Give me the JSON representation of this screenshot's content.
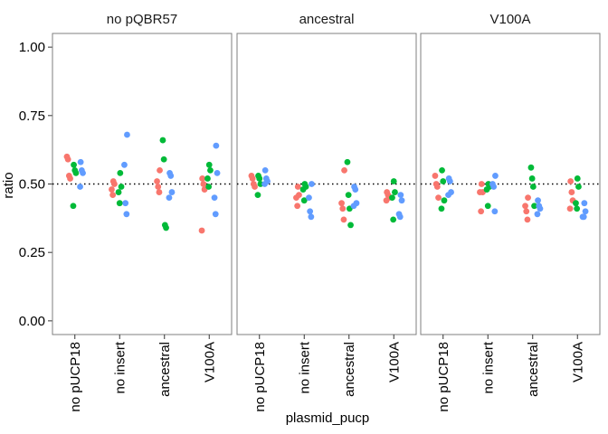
{
  "chart_data": {
    "type": "scatter",
    "xlabel": "plasmid_pucp",
    "ylabel": "ratio",
    "ylim": [
      -0.05,
      1.05
    ],
    "yticks": [
      "0.00",
      "0.25",
      "0.50",
      "0.75",
      "1.00"
    ],
    "categories": [
      "no pUCP18",
      "no insert",
      "ancestral",
      "V100A"
    ],
    "reference_line": 0.5,
    "grid": false,
    "legend": "none",
    "colors": [
      "#F8766D",
      "#00BA38",
      "#619CFF"
    ],
    "facets": [
      {
        "label": "no pQBR57",
        "points": [
          {
            "cat": 0,
            "s": 0,
            "y": 0.6
          },
          {
            "cat": 0,
            "s": 0,
            "y": 0.59
          },
          {
            "cat": 0,
            "s": 0,
            "y": 0.53
          },
          {
            "cat": 0,
            "s": 0,
            "y": 0.52
          },
          {
            "cat": 0,
            "s": 1,
            "y": 0.57
          },
          {
            "cat": 0,
            "s": 1,
            "y": 0.55
          },
          {
            "cat": 0,
            "s": 1,
            "y": 0.54
          },
          {
            "cat": 0,
            "s": 1,
            "y": 0.42
          },
          {
            "cat": 0,
            "s": 2,
            "y": 0.58
          },
          {
            "cat": 0,
            "s": 2,
            "y": 0.55
          },
          {
            "cat": 0,
            "s": 2,
            "y": 0.54
          },
          {
            "cat": 0,
            "s": 2,
            "y": 0.49
          },
          {
            "cat": 1,
            "s": 0,
            "y": 0.51
          },
          {
            "cat": 1,
            "s": 0,
            "y": 0.5
          },
          {
            "cat": 1,
            "s": 0,
            "y": 0.48
          },
          {
            "cat": 1,
            "s": 0,
            "y": 0.46
          },
          {
            "cat": 1,
            "s": 1,
            "y": 0.54
          },
          {
            "cat": 1,
            "s": 1,
            "y": 0.49
          },
          {
            "cat": 1,
            "s": 1,
            "y": 0.47
          },
          {
            "cat": 1,
            "s": 1,
            "y": 0.43
          },
          {
            "cat": 1,
            "s": 2,
            "y": 0.68
          },
          {
            "cat": 1,
            "s": 2,
            "y": 0.57
          },
          {
            "cat": 1,
            "s": 2,
            "y": 0.43
          },
          {
            "cat": 1,
            "s": 2,
            "y": 0.39
          },
          {
            "cat": 2,
            "s": 0,
            "y": 0.55
          },
          {
            "cat": 2,
            "s": 0,
            "y": 0.51
          },
          {
            "cat": 2,
            "s": 0,
            "y": 0.49
          },
          {
            "cat": 2,
            "s": 0,
            "y": 0.47
          },
          {
            "cat": 2,
            "s": 1,
            "y": 0.66
          },
          {
            "cat": 2,
            "s": 1,
            "y": 0.59
          },
          {
            "cat": 2,
            "s": 1,
            "y": 0.35
          },
          {
            "cat": 2,
            "s": 1,
            "y": 0.34
          },
          {
            "cat": 2,
            "s": 2,
            "y": 0.54
          },
          {
            "cat": 2,
            "s": 2,
            "y": 0.53
          },
          {
            "cat": 2,
            "s": 2,
            "y": 0.47
          },
          {
            "cat": 2,
            "s": 2,
            "y": 0.45
          },
          {
            "cat": 3,
            "s": 0,
            "y": 0.52
          },
          {
            "cat": 3,
            "s": 0,
            "y": 0.5
          },
          {
            "cat": 3,
            "s": 0,
            "y": 0.48
          },
          {
            "cat": 3,
            "s": 0,
            "y": 0.33
          },
          {
            "cat": 3,
            "s": 1,
            "y": 0.57
          },
          {
            "cat": 3,
            "s": 1,
            "y": 0.55
          },
          {
            "cat": 3,
            "s": 1,
            "y": 0.52
          },
          {
            "cat": 3,
            "s": 1,
            "y": 0.49
          },
          {
            "cat": 3,
            "s": 2,
            "y": 0.64
          },
          {
            "cat": 3,
            "s": 2,
            "y": 0.54
          },
          {
            "cat": 3,
            "s": 2,
            "y": 0.45
          },
          {
            "cat": 3,
            "s": 2,
            "y": 0.39
          }
        ]
      },
      {
        "label": "ancestral",
        "points": [
          {
            "cat": 0,
            "s": 0,
            "y": 0.53
          },
          {
            "cat": 0,
            "s": 0,
            "y": 0.52
          },
          {
            "cat": 0,
            "s": 0,
            "y": 0.5
          },
          {
            "cat": 0,
            "s": 0,
            "y": 0.49
          },
          {
            "cat": 0,
            "s": 1,
            "y": 0.53
          },
          {
            "cat": 0,
            "s": 1,
            "y": 0.52
          },
          {
            "cat": 0,
            "s": 1,
            "y": 0.5
          },
          {
            "cat": 0,
            "s": 1,
            "y": 0.46
          },
          {
            "cat": 0,
            "s": 2,
            "y": 0.55
          },
          {
            "cat": 0,
            "s": 2,
            "y": 0.52
          },
          {
            "cat": 0,
            "s": 2,
            "y": 0.51
          },
          {
            "cat": 0,
            "s": 2,
            "y": 0.5
          },
          {
            "cat": 1,
            "s": 0,
            "y": 0.49
          },
          {
            "cat": 1,
            "s": 0,
            "y": 0.46
          },
          {
            "cat": 1,
            "s": 0,
            "y": 0.45
          },
          {
            "cat": 1,
            "s": 0,
            "y": 0.42
          },
          {
            "cat": 1,
            "s": 1,
            "y": 0.5
          },
          {
            "cat": 1,
            "s": 1,
            "y": 0.49
          },
          {
            "cat": 1,
            "s": 1,
            "y": 0.48
          },
          {
            "cat": 1,
            "s": 1,
            "y": 0.44
          },
          {
            "cat": 1,
            "s": 2,
            "y": 0.5
          },
          {
            "cat": 1,
            "s": 2,
            "y": 0.45
          },
          {
            "cat": 1,
            "s": 2,
            "y": 0.4
          },
          {
            "cat": 1,
            "s": 2,
            "y": 0.38
          },
          {
            "cat": 2,
            "s": 0,
            "y": 0.55
          },
          {
            "cat": 2,
            "s": 0,
            "y": 0.43
          },
          {
            "cat": 2,
            "s": 0,
            "y": 0.41
          },
          {
            "cat": 2,
            "s": 0,
            "y": 0.37
          },
          {
            "cat": 2,
            "s": 1,
            "y": 0.58
          },
          {
            "cat": 2,
            "s": 1,
            "y": 0.46
          },
          {
            "cat": 2,
            "s": 1,
            "y": 0.41
          },
          {
            "cat": 2,
            "s": 1,
            "y": 0.35
          },
          {
            "cat": 2,
            "s": 2,
            "y": 0.49
          },
          {
            "cat": 2,
            "s": 2,
            "y": 0.48
          },
          {
            "cat": 2,
            "s": 2,
            "y": 0.43
          },
          {
            "cat": 2,
            "s": 2,
            "y": 0.42
          },
          {
            "cat": 3,
            "s": 0,
            "y": 0.47
          },
          {
            "cat": 3,
            "s": 0,
            "y": 0.46
          },
          {
            "cat": 3,
            "s": 0,
            "y": 0.45
          },
          {
            "cat": 3,
            "s": 0,
            "y": 0.44
          },
          {
            "cat": 3,
            "s": 1,
            "y": 0.51
          },
          {
            "cat": 3,
            "s": 1,
            "y": 0.47
          },
          {
            "cat": 3,
            "s": 1,
            "y": 0.45
          },
          {
            "cat": 3,
            "s": 1,
            "y": 0.37
          },
          {
            "cat": 3,
            "s": 2,
            "y": 0.46
          },
          {
            "cat": 3,
            "s": 2,
            "y": 0.44
          },
          {
            "cat": 3,
            "s": 2,
            "y": 0.39
          },
          {
            "cat": 3,
            "s": 2,
            "y": 0.38
          }
        ]
      },
      {
        "label": "V100A",
        "points": [
          {
            "cat": 0,
            "s": 0,
            "y": 0.53
          },
          {
            "cat": 0,
            "s": 0,
            "y": 0.5
          },
          {
            "cat": 0,
            "s": 0,
            "y": 0.49
          },
          {
            "cat": 0,
            "s": 0,
            "y": 0.45
          },
          {
            "cat": 0,
            "s": 1,
            "y": 0.55
          },
          {
            "cat": 0,
            "s": 1,
            "y": 0.51
          },
          {
            "cat": 0,
            "s": 1,
            "y": 0.44
          },
          {
            "cat": 0,
            "s": 1,
            "y": 0.41
          },
          {
            "cat": 0,
            "s": 2,
            "y": 0.52
          },
          {
            "cat": 0,
            "s": 2,
            "y": 0.51
          },
          {
            "cat": 0,
            "s": 2,
            "y": 0.47
          },
          {
            "cat": 0,
            "s": 2,
            "y": 0.46
          },
          {
            "cat": 1,
            "s": 0,
            "y": 0.5
          },
          {
            "cat": 1,
            "s": 0,
            "y": 0.47
          },
          {
            "cat": 1,
            "s": 0,
            "y": 0.47
          },
          {
            "cat": 1,
            "s": 0,
            "y": 0.4
          },
          {
            "cat": 1,
            "s": 1,
            "y": 0.5
          },
          {
            "cat": 1,
            "s": 1,
            "y": 0.49
          },
          {
            "cat": 1,
            "s": 1,
            "y": 0.48
          },
          {
            "cat": 1,
            "s": 1,
            "y": 0.42
          },
          {
            "cat": 1,
            "s": 2,
            "y": 0.53
          },
          {
            "cat": 1,
            "s": 2,
            "y": 0.5
          },
          {
            "cat": 1,
            "s": 2,
            "y": 0.49
          },
          {
            "cat": 1,
            "s": 2,
            "y": 0.4
          },
          {
            "cat": 2,
            "s": 0,
            "y": 0.45
          },
          {
            "cat": 2,
            "s": 0,
            "y": 0.42
          },
          {
            "cat": 2,
            "s": 0,
            "y": 0.4
          },
          {
            "cat": 2,
            "s": 0,
            "y": 0.37
          },
          {
            "cat": 2,
            "s": 1,
            "y": 0.56
          },
          {
            "cat": 2,
            "s": 1,
            "y": 0.52
          },
          {
            "cat": 2,
            "s": 1,
            "y": 0.49
          },
          {
            "cat": 2,
            "s": 1,
            "y": 0.42
          },
          {
            "cat": 2,
            "s": 2,
            "y": 0.44
          },
          {
            "cat": 2,
            "s": 2,
            "y": 0.42
          },
          {
            "cat": 2,
            "s": 2,
            "y": 0.41
          },
          {
            "cat": 2,
            "s": 2,
            "y": 0.39
          },
          {
            "cat": 3,
            "s": 0,
            "y": 0.51
          },
          {
            "cat": 3,
            "s": 0,
            "y": 0.47
          },
          {
            "cat": 3,
            "s": 0,
            "y": 0.44
          },
          {
            "cat": 3,
            "s": 0,
            "y": 0.41
          },
          {
            "cat": 3,
            "s": 1,
            "y": 0.52
          },
          {
            "cat": 3,
            "s": 1,
            "y": 0.49
          },
          {
            "cat": 3,
            "s": 1,
            "y": 0.43
          },
          {
            "cat": 3,
            "s": 1,
            "y": 0.41
          },
          {
            "cat": 3,
            "s": 2,
            "y": 0.43
          },
          {
            "cat": 3,
            "s": 2,
            "y": 0.4
          },
          {
            "cat": 3,
            "s": 2,
            "y": 0.38
          },
          {
            "cat": 3,
            "s": 2,
            "y": 0.38
          }
        ]
      }
    ]
  }
}
